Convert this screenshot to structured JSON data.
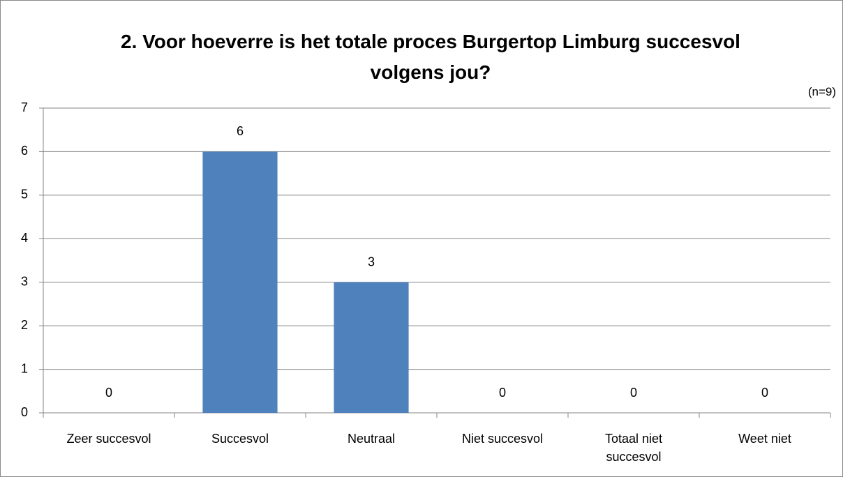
{
  "chart_data": {
    "type": "bar",
    "title": "2. Voor hoeverre is het totale proces Burgertop Limburg succesvol volgens jou?",
    "annotation": "(n=9)",
    "categories": [
      "Zeer succesvol",
      "Succesvol",
      "Neutraal",
      "Niet succesvol",
      "Totaal niet succesvol",
      "Weet niet"
    ],
    "values": [
      0,
      6,
      3,
      0,
      0,
      0
    ],
    "color": "#4f81bd",
    "ylim": [
      0,
      7
    ],
    "yticks": [
      0,
      1,
      2,
      3,
      4,
      5,
      6,
      7
    ],
    "grid": true
  }
}
